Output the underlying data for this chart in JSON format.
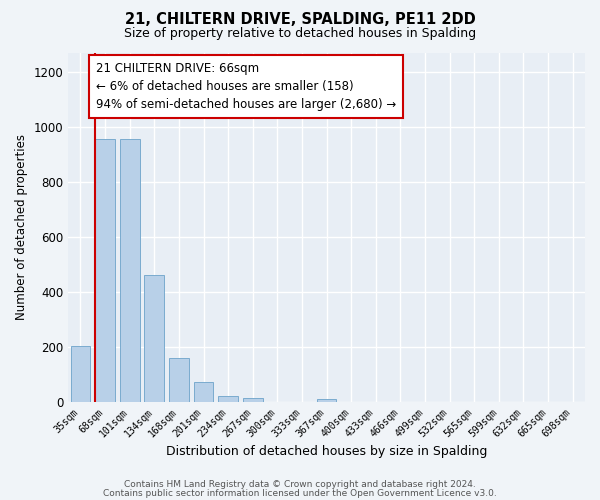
{
  "title": "21, CHILTERN DRIVE, SPALDING, PE11 2DD",
  "subtitle": "Size of property relative to detached houses in Spalding",
  "xlabel": "Distribution of detached houses by size in Spalding",
  "ylabel": "Number of detached properties",
  "bar_labels": [
    "35sqm",
    "68sqm",
    "101sqm",
    "134sqm",
    "168sqm",
    "201sqm",
    "234sqm",
    "267sqm",
    "300sqm",
    "333sqm",
    "367sqm",
    "400sqm",
    "433sqm",
    "466sqm",
    "499sqm",
    "532sqm",
    "565sqm",
    "599sqm",
    "632sqm",
    "665sqm",
    "698sqm"
  ],
  "bar_values": [
    202,
    955,
    955,
    462,
    160,
    72,
    22,
    15,
    0,
    0,
    10,
    0,
    0,
    0,
    0,
    0,
    0,
    0,
    0,
    0,
    0
  ],
  "bar_color": "#b8d0e8",
  "bar_edge_color": "#7aabcf",
  "marker_line_color": "#cc0000",
  "annotation_title": "21 CHILTERN DRIVE: 66sqm",
  "annotation_line1": "← 6% of detached houses are smaller (158)",
  "annotation_line2": "94% of semi-detached houses are larger (2,680) →",
  "annotation_box_color": "#ffffff",
  "annotation_box_edgecolor": "#cc0000",
  "ylim": [
    0,
    1270
  ],
  "yticks": [
    0,
    200,
    400,
    600,
    800,
    1000,
    1200
  ],
  "footer_line1": "Contains HM Land Registry data © Crown copyright and database right 2024.",
  "footer_line2": "Contains public sector information licensed under the Open Government Licence v3.0.",
  "plot_bg_color": "#e8eef5",
  "fig_bg_color": "#f0f4f8",
  "grid_color": "#ffffff"
}
